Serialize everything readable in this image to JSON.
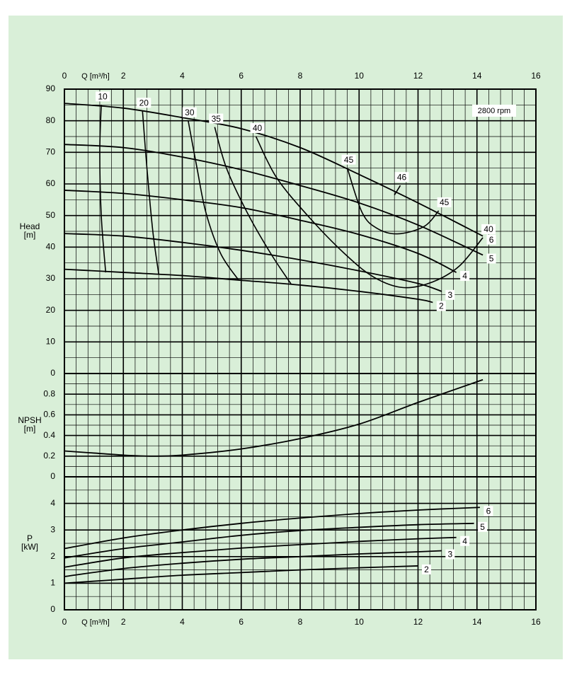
{
  "chart_data": [
    {
      "type": "line",
      "xlabel": "Q [m³/h]",
      "xlim": [
        0,
        16
      ],
      "xticks": [
        0,
        2,
        4,
        6,
        8,
        10,
        12,
        14,
        16
      ],
      "ylabel": [
        "Head",
        "[m]"
      ],
      "ylim": [
        0,
        90
      ],
      "yticks": [
        0,
        10,
        20,
        30,
        40,
        50,
        60,
        70,
        80,
        90
      ],
      "grid": true,
      "minor_grid": {
        "x": 0.4,
        "y": 5
      },
      "annotation": "2800 rpm",
      "series": [
        {
          "name": "6",
          "color": "#000000",
          "x": [
            0,
            2,
            4,
            6,
            8,
            10,
            12,
            14.2
          ],
          "values": [
            85.5,
            84,
            81,
            77.5,
            71.5,
            63,
            54,
            43.5
          ]
        },
        {
          "name": "5",
          "color": "#000000",
          "x": [
            0,
            2,
            4,
            6,
            8,
            10,
            12,
            14.2
          ],
          "values": [
            72.5,
            71.5,
            68.5,
            64.5,
            59.5,
            54,
            47,
            37.5
          ]
        },
        {
          "name": "4",
          "color": "#000000",
          "x": [
            0,
            2,
            4,
            6,
            8,
            10,
            12,
            13.3
          ],
          "values": [
            58,
            57,
            55,
            52.5,
            48.5,
            44,
            38,
            32
          ]
        },
        {
          "name": "3",
          "color": "#000000",
          "x": [
            0,
            2,
            4,
            6,
            8,
            10,
            12,
            12.8
          ],
          "values": [
            44.3,
            43.5,
            41.5,
            39,
            36,
            32.5,
            28.5,
            26
          ]
        },
        {
          "name": "2",
          "color": "#000000",
          "x": [
            0,
            2,
            4,
            6,
            8,
            10,
            12,
            12.5
          ],
          "values": [
            33,
            32,
            31,
            29.5,
            28,
            26,
            23.5,
            22.5
          ]
        }
      ],
      "efficiency_lines": [
        {
          "name": "10",
          "x": [
            1.25,
            1.2,
            1.25,
            1.4
          ],
          "values": [
            85,
            70,
            50,
            32
          ]
        },
        {
          "name": "20",
          "x": [
            2.65,
            2.8,
            3.0,
            3.2
          ],
          "values": [
            83,
            65,
            45,
            31.5
          ]
        },
        {
          "name": "30",
          "x": [
            4.2,
            4.5,
            4.8,
            5.3,
            5.9
          ],
          "values": [
            80,
            65,
            51,
            38,
            29.7
          ]
        },
        {
          "name": "35",
          "x": [
            5.1,
            5.5,
            6.2,
            7.0,
            7.7
          ],
          "values": [
            78,
            65,
            51,
            38,
            28.2
          ]
        },
        {
          "name": "40",
          "x": [
            6.5,
            7.2,
            8.3,
            9.5,
            10.5,
            11.5,
            12.5,
            13.4,
            14.2
          ],
          "values": [
            75,
            62,
            49.5,
            38,
            30.5,
            27.2,
            29,
            34,
            43
          ]
        },
        {
          "name": "45",
          "x": [
            9.6,
            10.1,
            10.6,
            11.3,
            12.2,
            12.7
          ],
          "values": [
            65,
            51,
            46,
            44.2,
            46.5,
            51.5
          ]
        },
        {
          "name": "46",
          "x": [
            11.4,
            11.2
          ],
          "values": [
            59.5,
            56.5
          ]
        }
      ]
    },
    {
      "type": "line",
      "xlim": [
        0,
        16
      ],
      "xticks": [
        0,
        2,
        4,
        6,
        8,
        10,
        12,
        14,
        16
      ],
      "ylabel": [
        "NPSH",
        "[m]"
      ],
      "ylim": [
        0,
        1.0
      ],
      "yticks": [
        0,
        0.2,
        0.4,
        0.6,
        0.8
      ],
      "grid": true,
      "minor_grid": {
        "x": 0.4,
        "y": 0.1
      },
      "series": [
        {
          "color": "#000000",
          "x": [
            0,
            1,
            2,
            3,
            4,
            6,
            8,
            10,
            12,
            14.2
          ],
          "values": [
            0.25,
            0.23,
            0.21,
            0.2,
            0.21,
            0.27,
            0.37,
            0.51,
            0.72,
            0.94
          ]
        }
      ]
    },
    {
      "type": "line",
      "xlabel": "Q [m³/h]",
      "xlim": [
        0,
        16
      ],
      "xticks": [
        0,
        2,
        4,
        6,
        8,
        10,
        12,
        14,
        16
      ],
      "ylabel": [
        "P",
        "[kW]"
      ],
      "ylim": [
        0,
        5
      ],
      "yticks": [
        0,
        1,
        2,
        3,
        4
      ],
      "grid": true,
      "minor_grid": {
        "x": 0.4,
        "y": 0.5
      },
      "series": [
        {
          "name": "6",
          "color": "#000000",
          "x": [
            0,
            2,
            4,
            6,
            8,
            10,
            12,
            14.1
          ],
          "values": [
            2.3,
            2.7,
            3.0,
            3.25,
            3.45,
            3.62,
            3.75,
            3.85
          ]
        },
        {
          "name": "5",
          "color": "#000000",
          "x": [
            0,
            2,
            4,
            6,
            8,
            10,
            12,
            13.9
          ],
          "values": [
            1.95,
            2.3,
            2.55,
            2.8,
            2.98,
            3.1,
            3.2,
            3.25
          ]
        },
        {
          "name": "4",
          "color": "#000000",
          "x": [
            0,
            2,
            4,
            6,
            8,
            10,
            12,
            13.3
          ],
          "values": [
            1.6,
            1.95,
            2.15,
            2.32,
            2.45,
            2.57,
            2.67,
            2.72
          ]
        },
        {
          "name": "3",
          "color": "#000000",
          "x": [
            0,
            2,
            4,
            6,
            8,
            10,
            12,
            12.8
          ],
          "values": [
            1.25,
            1.55,
            1.75,
            1.9,
            2.0,
            2.1,
            2.18,
            2.22
          ]
        },
        {
          "name": "2",
          "color": "#000000",
          "x": [
            0,
            2,
            4,
            6,
            8,
            10,
            12
          ],
          "values": [
            1.0,
            1.15,
            1.3,
            1.4,
            1.5,
            1.58,
            1.65
          ]
        }
      ]
    }
  ]
}
